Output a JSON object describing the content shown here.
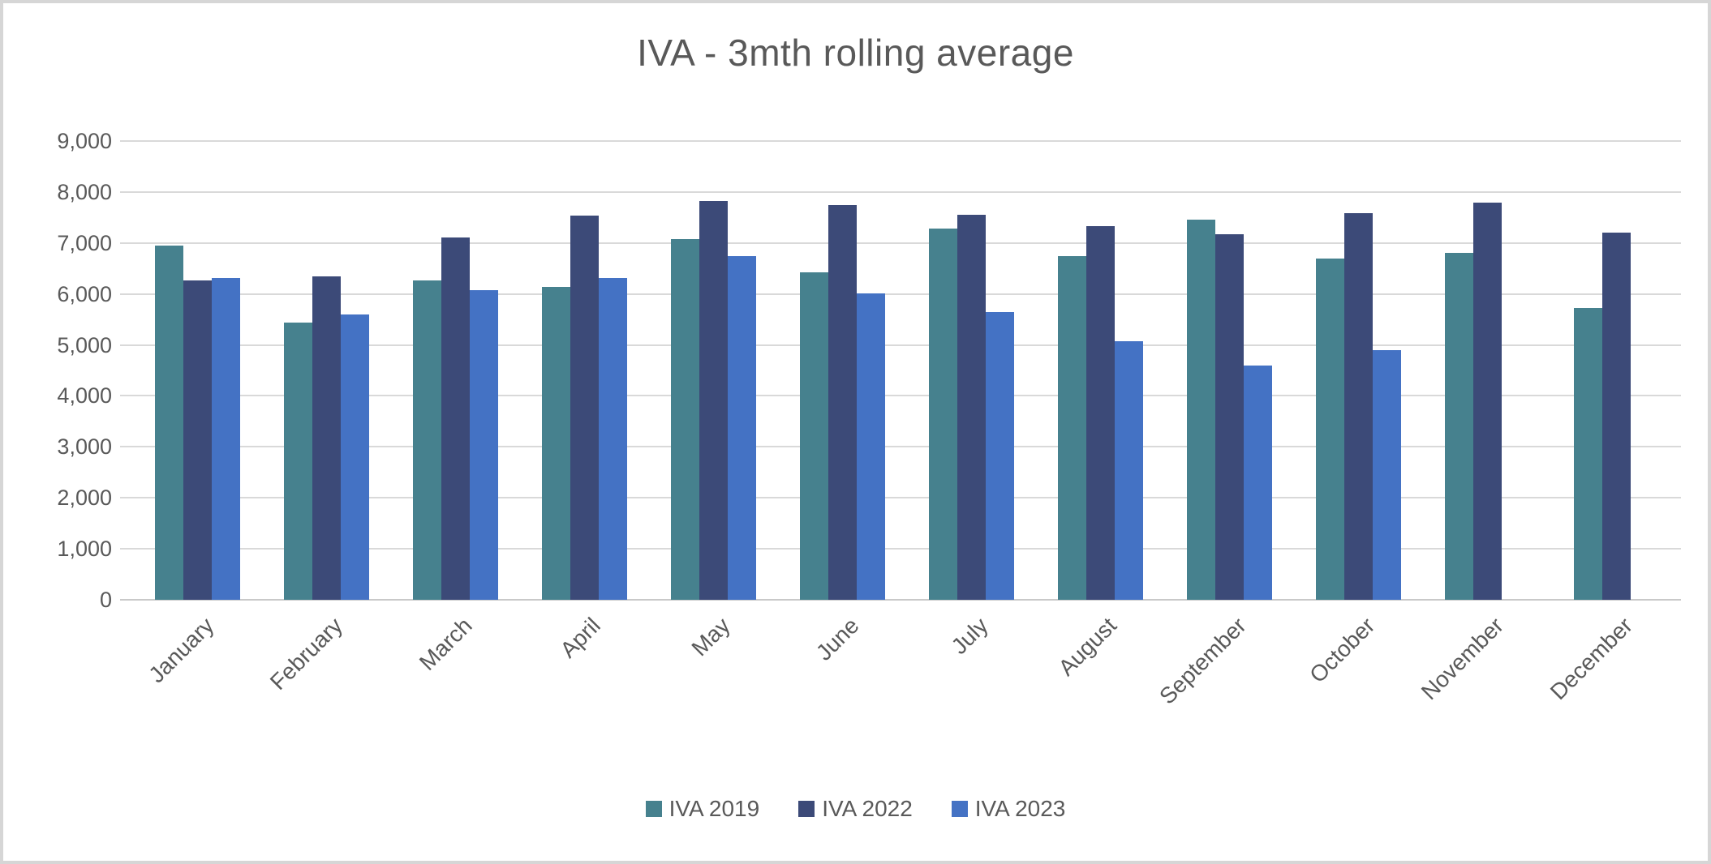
{
  "chart": {
    "text_color": "#595959",
    "gridline_color": "#D9D9D9",
    "axis_line_color": "#C9C9C9",
    "canvas_border_color": "#D6D6D6",
    "background": "#FFFFFF"
  },
  "chart_data": {
    "type": "bar",
    "title": "IVA - 3mth rolling average",
    "xlabel": "",
    "ylabel": "",
    "categories": [
      "January",
      "February",
      "March",
      "April",
      "May",
      "June",
      "July",
      "August",
      "September",
      "October",
      "November",
      "December"
    ],
    "series": [
      {
        "name": "IVA 2019",
        "color": "#46818E",
        "values": [
          6950,
          5440,
          6260,
          6140,
          7070,
          6430,
          7280,
          6740,
          7460,
          6690,
          6800,
          5730
        ]
      },
      {
        "name": "IVA 2022",
        "color": "#3C4A78",
        "values": [
          6260,
          6350,
          7110,
          7530,
          7820,
          7740,
          7550,
          7330,
          7170,
          7580,
          7790,
          7210
        ]
      },
      {
        "name": "IVA 2023",
        "color": "#4472C4",
        "values": [
          6320,
          5600,
          6070,
          6310,
          6740,
          6010,
          5640,
          5070,
          4590,
          4900,
          null,
          null
        ]
      }
    ],
    "ylim": [
      0,
      9000
    ],
    "ytick_step": 1000,
    "ytick_labels": [
      "0",
      "1,000",
      "2,000",
      "3,000",
      "4,000",
      "5,000",
      "6,000",
      "7,000",
      "8,000",
      "9,000"
    ],
    "grid": true,
    "legend_position": "bottom"
  }
}
